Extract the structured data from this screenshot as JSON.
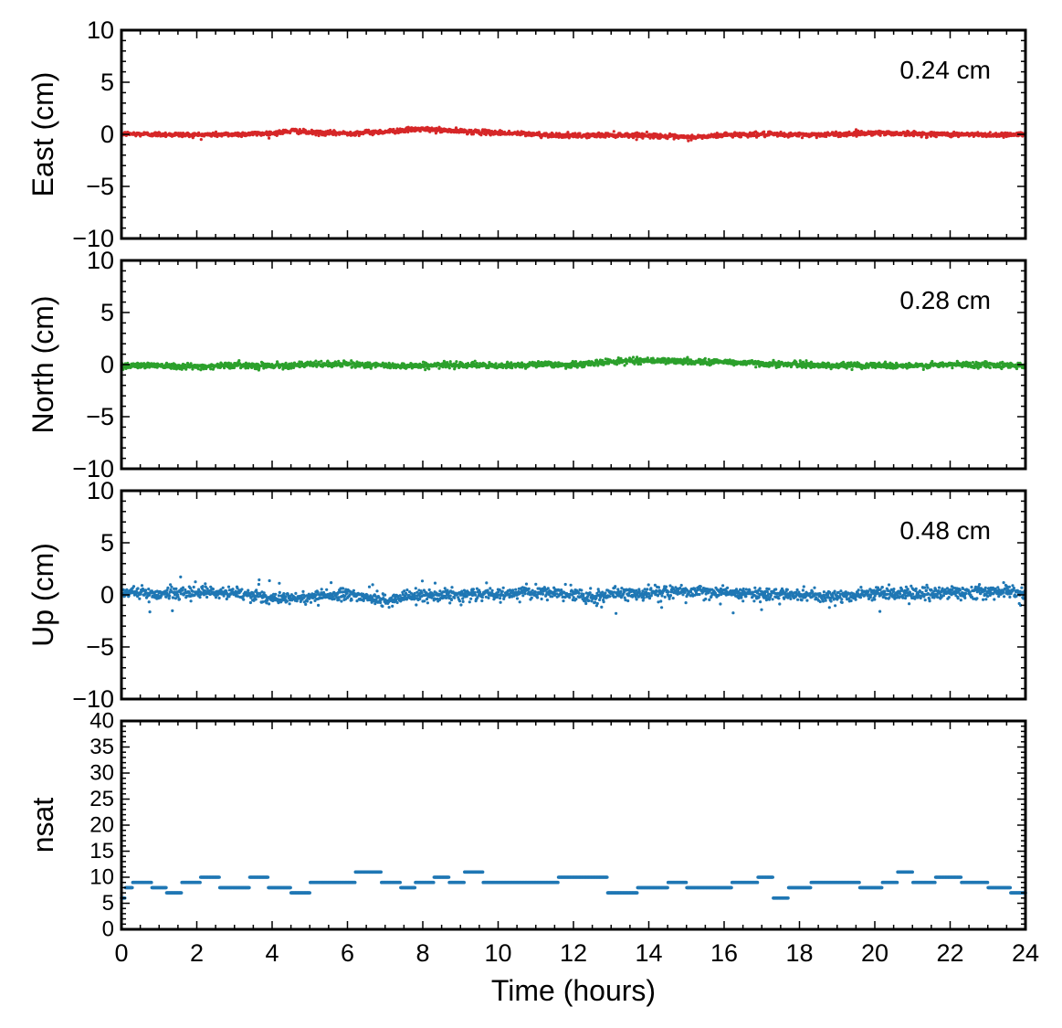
{
  "chart_data": {
    "type": "scatter",
    "xlabel": "Time (hours)",
    "xlim": [
      0,
      24
    ],
    "xticks": [
      0,
      2,
      4,
      6,
      8,
      10,
      12,
      14,
      16,
      18,
      20,
      22,
      24
    ],
    "panels": [
      {
        "id": "east",
        "ylabel": "East (cm)",
        "ylim": [
          -10,
          10
        ],
        "yticks": [
          -10,
          -5,
          0,
          5,
          10
        ],
        "yticklabels": [
          "−10",
          "−5",
          "0",
          "5",
          "10"
        ],
        "color": "#d62728",
        "annotation": "0.24 cm",
        "series": {
          "x": [
            0,
            1,
            2,
            3,
            4,
            4.6,
            5,
            6,
            7,
            7.9,
            9,
            10,
            11,
            12,
            13,
            14,
            15,
            15.6,
            16,
            17,
            18,
            19,
            20,
            21,
            22,
            23,
            24
          ],
          "y": [
            0.05,
            0.0,
            -0.05,
            0.0,
            0.1,
            0.35,
            0.15,
            0.1,
            0.25,
            0.5,
            0.3,
            0.15,
            0.0,
            -0.15,
            -0.05,
            -0.1,
            -0.3,
            -0.2,
            -0.05,
            0.0,
            -0.05,
            0.0,
            0.15,
            0.05,
            0.0,
            -0.05,
            0.0
          ]
        },
        "noise": 0.2
      },
      {
        "id": "north",
        "ylabel": "North (cm)",
        "ylim": [
          -10,
          10
        ],
        "yticks": [
          -10,
          -5,
          0,
          5,
          10
        ],
        "yticklabels": [
          "−10",
          "−5",
          "0",
          "5",
          "10"
        ],
        "color": "#2ca02c",
        "annotation": "0.28 cm",
        "series": {
          "x": [
            0,
            1,
            2,
            3,
            4,
            5,
            6,
            7,
            8,
            9,
            10,
            11,
            12,
            13,
            14,
            15,
            16,
            17,
            18,
            19,
            20,
            21,
            22,
            23,
            24
          ],
          "y": [
            -0.1,
            -0.05,
            -0.2,
            -0.05,
            -0.1,
            0.0,
            0.05,
            -0.1,
            -0.1,
            0.0,
            -0.15,
            0.05,
            -0.05,
            0.3,
            0.4,
            0.3,
            0.25,
            0.1,
            0.0,
            -0.1,
            -0.05,
            -0.15,
            0.0,
            0.0,
            -0.1
          ]
        },
        "noise": 0.25
      },
      {
        "id": "up",
        "ylabel": "Up (cm)",
        "ylim": [
          -10,
          10
        ],
        "yticks": [
          -10,
          -5,
          0,
          5,
          10
        ],
        "yticklabels": [
          "−10",
          "−5",
          "0",
          "5",
          "10"
        ],
        "color": "#1f77b4",
        "annotation": "0.48 cm",
        "series": {
          "x": [
            0,
            1,
            2,
            3,
            4,
            5,
            6,
            7,
            7.5,
            8,
            9,
            10,
            11,
            12,
            12.7,
            13,
            14,
            15,
            16,
            17,
            18,
            19,
            20,
            21,
            22,
            23,
            24
          ],
          "y": [
            0.3,
            0.1,
            0.2,
            0.2,
            -0.4,
            -0.2,
            0.1,
            -0.6,
            -0.2,
            0.0,
            0.0,
            0.1,
            0.2,
            0.0,
            -0.3,
            0.1,
            0.2,
            0.3,
            0.2,
            0.0,
            0.1,
            -0.2,
            0.2,
            0.1,
            0.2,
            0.3,
            0.2
          ]
        },
        "noise": 0.5
      },
      {
        "id": "nsat",
        "ylabel": "nsat",
        "ylim": [
          0,
          40
        ],
        "yticks": [
          0,
          5,
          10,
          15,
          20,
          25,
          30,
          35,
          40
        ],
        "yticklabels": [
          "0",
          "5",
          "10",
          "15",
          "20",
          "25",
          "30",
          "35",
          "40"
        ],
        "color": "#1f77b4",
        "annotation": "",
        "steps": {
          "x": [
            0,
            0.1,
            0.3,
            0.8,
            1.2,
            1.6,
            2.1,
            2.6,
            3.0,
            3.4,
            3.9,
            4.5,
            5.0,
            5.8,
            6.2,
            6.9,
            7.4,
            7.8,
            8.3,
            8.7,
            9.1,
            9.6,
            10.0,
            10.6,
            11.2,
            11.6,
            12.3,
            12.9,
            13.7,
            14.5,
            15.0,
            15.6,
            16.2,
            16.6,
            16.9,
            17.3,
            17.7,
            18.3,
            19.0,
            19.6,
            20.2,
            20.6,
            21.0,
            21.6,
            22.3,
            23.0,
            23.6
          ],
          "y": [
            6,
            8,
            9,
            8,
            7,
            9,
            10,
            8,
            8,
            10,
            8,
            7,
            9,
            9,
            11,
            9,
            8,
            9,
            10,
            9,
            11,
            9,
            9,
            9,
            9,
            10,
            10,
            7,
            8,
            9,
            8,
            8,
            9,
            9,
            10,
            6,
            8,
            9,
            9,
            8,
            9,
            11,
            9,
            10,
            9,
            8,
            7
          ]
        }
      }
    ]
  }
}
